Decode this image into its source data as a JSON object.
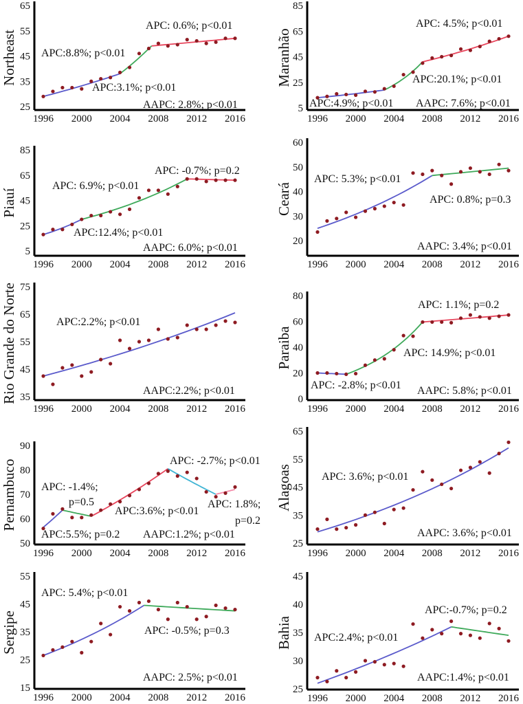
{
  "chart_data": [
    {
      "type": "line",
      "ylabel": "Northeast",
      "ylim": [
        25,
        65
      ],
      "yticks": [
        25,
        35,
        45,
        55,
        65
      ],
      "x": [
        1996,
        1997,
        1998,
        1999,
        2000,
        2001,
        2002,
        2003,
        2004,
        2005,
        2006,
        2007,
        2008,
        2009,
        2010,
        2011,
        2012,
        2013,
        2014,
        2015,
        2016
      ],
      "xticks": [
        1996,
        2000,
        2004,
        2008,
        2012,
        2016
      ],
      "points": [
        29,
        31,
        32.5,
        32.5,
        32,
        35,
        36,
        36.5,
        38.5,
        40.5,
        46,
        48,
        50,
        49,
        49.5,
        51.5,
        51,
        50,
        50.5,
        52,
        52
      ],
      "segments": [
        {
          "x0": 1996,
          "x1": 2004,
          "y0": 29,
          "y1": 38,
          "color": "#5a5acb"
        },
        {
          "x0": 2004,
          "x1": 2007.3,
          "y0": 38,
          "y1": 49,
          "color": "#3ea95a"
        },
        {
          "x0": 2007.3,
          "x1": 2016,
          "y0": 49,
          "y1": 52,
          "color": "#e8455c"
        }
      ],
      "annotations": [
        "APC: 0.6%; p<0.01",
        "APC:8.8%; p<0.01",
        "APC:3.1%; p<0.01",
        "AAPC: 2.8%; p<0.01"
      ]
    },
    {
      "type": "line",
      "ylabel": "Maranhão",
      "ylim": [
        5,
        85
      ],
      "yticks": [
        5,
        25,
        45,
        65,
        85
      ],
      "x": [
        1996,
        1997,
        1998,
        1999,
        2000,
        2001,
        2002,
        2003,
        2004,
        2005,
        2006,
        2007,
        2008,
        2009,
        2010,
        2011,
        2012,
        2013,
        2014,
        2015,
        2016
      ],
      "xticks": [
        1996,
        2000,
        2004,
        2008,
        2012,
        2016
      ],
      "points": [
        13,
        14,
        16,
        15.5,
        15,
        18,
        17.5,
        20,
        22,
        31,
        33,
        40,
        44,
        45,
        46,
        51,
        50,
        53,
        57,
        59,
        61
      ],
      "segments": [
        {
          "x0": 1996,
          "x1": 2003,
          "y0": 13,
          "y1": 19,
          "color": "#5a5acb"
        },
        {
          "x0": 2003,
          "x1": 2007,
          "y0": 19,
          "y1": 41,
          "color": "#3ea95a"
        },
        {
          "x0": 2007,
          "x1": 2016,
          "y0": 41,
          "y1": 61,
          "color": "#e8455c"
        }
      ],
      "annotations": [
        "APC: 4.5%; p<0.01",
        "APC:20.1%; p<0.01",
        "APC:4.9%; p<0.01",
        "AAPC: 7.6%; p<0.01"
      ]
    },
    {
      "type": "line",
      "ylabel": "Piauí",
      "ylim": [
        5,
        85
      ],
      "yticks": [
        5,
        25,
        45,
        65,
        85
      ],
      "x": [
        1996,
        1997,
        1998,
        1999,
        2000,
        2001,
        2002,
        2003,
        2004,
        2005,
        2006,
        2007,
        2008,
        2009,
        2010,
        2011,
        2012,
        2013,
        2014,
        2015,
        2016
      ],
      "xticks": [
        1996,
        2000,
        2004,
        2008,
        2012,
        2016
      ],
      "points": [
        18,
        22,
        22,
        26,
        30,
        33,
        33,
        36,
        34,
        38,
        47,
        53,
        53,
        50,
        56,
        62,
        62,
        60,
        61,
        61,
        61
      ],
      "segments": [
        {
          "x0": 1996,
          "x1": 2000,
          "y0": 18,
          "y1": 30,
          "color": "#5a5acb"
        },
        {
          "x0": 2000,
          "x1": 2011,
          "y0": 30,
          "y1": 62,
          "color": "#3ea95a"
        },
        {
          "x0": 2011,
          "x1": 2016,
          "y0": 62,
          "y1": 61,
          "color": "#e8455c"
        }
      ],
      "annotations": [
        "APC: -0.7%; p=0.2",
        "APC: 6.9%; p<0.01",
        "APC:12.4%; p<0.01",
        "AAPC: 6.0%; p<0.01"
      ]
    },
    {
      "type": "line",
      "ylabel": "Ceará",
      "ylim": [
        20,
        60
      ],
      "yticks": [
        20,
        30,
        40,
        50,
        60
      ],
      "x": [
        1996,
        1997,
        1998,
        1999,
        2000,
        2001,
        2002,
        2003,
        2004,
        2005,
        2006,
        2007,
        2008,
        2009,
        2010,
        2011,
        2012,
        2013,
        2014,
        2015,
        2016
      ],
      "xticks": [
        1996,
        2000,
        2004,
        2008,
        2012,
        2016
      ],
      "points": [
        23.5,
        28,
        29,
        31.5,
        29.5,
        32,
        33,
        34,
        35.5,
        34.5,
        47.5,
        47,
        48.5,
        46.5,
        43,
        48,
        49.5,
        48,
        47,
        51,
        48.5
      ],
      "segments": [
        {
          "x0": 1996,
          "x1": 2008,
          "y0": 25,
          "y1": 46.5,
          "color": "#5a5acb"
        },
        {
          "x0": 2008,
          "x1": 2016,
          "y0": 46.5,
          "y1": 49.5,
          "color": "#3ea95a"
        }
      ],
      "annotations": [
        "APC: 5.3%; p<0.01",
        "APC: 0.8%; p=0.3",
        "AAPC: 3.4%; p<0.01"
      ]
    },
    {
      "type": "line",
      "ylabel": "Rio Grande do Norte",
      "ylim": [
        35,
        75
      ],
      "yticks": [
        35,
        45,
        55,
        65,
        75
      ],
      "x": [
        1996,
        1997,
        1998,
        1999,
        2000,
        2001,
        2002,
        2003,
        2004,
        2005,
        2006,
        2007,
        2008,
        2009,
        2010,
        2011,
        2012,
        2013,
        2014,
        2015,
        2016
      ],
      "xticks": [
        1996,
        2000,
        2004,
        2008,
        2012,
        2016
      ],
      "points": [
        42.5,
        39.5,
        45.5,
        46.5,
        42.5,
        44,
        48.5,
        47,
        55.5,
        52.5,
        55,
        55.5,
        59.5,
        56,
        56.5,
        61,
        59.5,
        59.5,
        61,
        62.5,
        62
      ],
      "segments": [
        {
          "x0": 1996,
          "x1": 2016,
          "y0": 42.5,
          "y1": 65.5,
          "color": "#5a5acb"
        }
      ],
      "annotations": [
        "APC:2.2%; p<0.01",
        "AAPC:2.2%; p<0.01"
      ]
    },
    {
      "type": "line",
      "ylabel": "Paraiba",
      "ylim": [
        0,
        80
      ],
      "yticks": [
        0,
        20,
        40,
        60,
        80
      ],
      "x": [
        1996,
        1997,
        1998,
        1999,
        2000,
        2001,
        2002,
        2003,
        2004,
        2005,
        2006,
        2007,
        2008,
        2009,
        2010,
        2011,
        2012,
        2013,
        2014,
        2015,
        2016
      ],
      "xticks": [
        1996,
        2000,
        2004,
        2008,
        2012,
        2016
      ],
      "points": [
        20,
        20,
        19.5,
        19,
        19.5,
        26,
        30,
        31,
        38,
        49,
        48.5,
        59.5,
        59.5,
        59.5,
        59,
        62.5,
        65,
        63.5,
        62.5,
        64,
        65
      ],
      "segments": [
        {
          "x0": 1996,
          "x1": 1999,
          "y0": 20,
          "y1": 19,
          "color": "#5a5acb"
        },
        {
          "x0": 1999,
          "x1": 2007,
          "y0": 19,
          "y1": 59.5,
          "color": "#3ea95a"
        },
        {
          "x0": 2007,
          "x1": 2016,
          "y0": 59.5,
          "y1": 65,
          "color": "#e8455c"
        }
      ],
      "annotations": [
        "APC: 1.1%; p=0.2",
        "APC: 14.9%; p<0.01",
        "APC: -2.8%; p<0.01",
        "AAPC: 5.8%; p<0.01"
      ]
    },
    {
      "type": "line",
      "ylabel": "Pernambuco",
      "ylim": [
        50,
        90
      ],
      "yticks": [
        50,
        60,
        70,
        80,
        90
      ],
      "x": [
        1996,
        1997,
        1998,
        1999,
        2000,
        2001,
        2002,
        2003,
        2004,
        2005,
        2006,
        2007,
        2008,
        2009,
        2010,
        2011,
        2012,
        2013,
        2014,
        2015,
        2016
      ],
      "xticks": [
        1996,
        2000,
        2004,
        2008,
        2012,
        2016
      ],
      "points": [
        56,
        62,
        64,
        60.5,
        60.5,
        61.5,
        63.5,
        66,
        67,
        69.5,
        72,
        74.5,
        78.5,
        79.5,
        77.5,
        79,
        76.5,
        71,
        69,
        70.5,
        73
      ],
      "segments": [
        {
          "x0": 1996,
          "x1": 1998,
          "y0": 56.5,
          "y1": 63.5,
          "color": "#5a5acb"
        },
        {
          "x0": 1998,
          "x1": 2001,
          "y0": 63.5,
          "y1": 61,
          "color": "#3ea95a"
        },
        {
          "x0": 2001,
          "x1": 2009,
          "y0": 61,
          "y1": 80.5,
          "color": "#e8455c"
        },
        {
          "x0": 2009,
          "x1": 2014,
          "y0": 80.5,
          "y1": 70,
          "color": "#3fb4d4"
        },
        {
          "x0": 2014,
          "x1": 2016,
          "y0": 70,
          "y1": 72,
          "color": "#f48aa8"
        }
      ],
      "annotations": [
        "APC: -2.7%; p<0.01",
        "APC: -1.4%;",
        "p=0.5",
        "APC:3.6%; p<0.01",
        "APC: 1.8%;",
        "p=0.2",
        "APC:5.5%; p=0.2",
        "AAPC:1.2%; p<0.01"
      ]
    },
    {
      "type": "line",
      "ylabel": "Alagoas",
      "ylim": [
        25,
        65
      ],
      "yticks": [
        25,
        35,
        45,
        55,
        65
      ],
      "x": [
        1996,
        1997,
        1998,
        1999,
        2000,
        2001,
        2002,
        2003,
        2004,
        2005,
        2006,
        2007,
        2008,
        2009,
        2010,
        2011,
        2012,
        2013,
        2014,
        2015,
        2016
      ],
      "xticks": [
        1996,
        2000,
        2004,
        2008,
        2012,
        2016
      ],
      "points": [
        30,
        33.5,
        30,
        30.5,
        31.5,
        35,
        36,
        32,
        37,
        37.5,
        44,
        50.5,
        47.5,
        46,
        44.5,
        51,
        52,
        54,
        50,
        57,
        61
      ],
      "segments": [
        {
          "x0": 1996,
          "x1": 2016,
          "y0": 29,
          "y1": 59,
          "color": "#5a5acb"
        }
      ],
      "annotations": [
        "APC: 3.6%; p<0.01",
        "AAPC: 3.6%; p<0.01"
      ]
    },
    {
      "type": "line",
      "ylabel": "Sergipe",
      "ylim": [
        15,
        55
      ],
      "yticks": [
        15,
        25,
        35,
        45,
        55
      ],
      "x": [
        1996,
        1997,
        1998,
        1999,
        2000,
        2001,
        2002,
        2003,
        2004,
        2005,
        2006,
        2007,
        2008,
        2009,
        2010,
        2011,
        2012,
        2013,
        2014,
        2015,
        2016
      ],
      "xticks": [
        1996,
        2000,
        2004,
        2008,
        2012,
        2016
      ],
      "points": [
        26.5,
        28.5,
        29.5,
        31.5,
        27.5,
        31.5,
        38,
        34,
        44,
        42.5,
        45.5,
        46,
        43,
        39.5,
        45.5,
        44,
        39.5,
        40.5,
        44.5,
        43.5,
        43
      ],
      "segments": [
        {
          "x0": 1996,
          "x1": 2006.5,
          "y0": 26.5,
          "y1": 44.5,
          "color": "#5a5acb"
        },
        {
          "x0": 2006.5,
          "x1": 2016,
          "y0": 44.5,
          "y1": 42.5,
          "color": "#3ea95a"
        }
      ],
      "annotations": [
        "APC: 5.4%; p<0.01",
        "APC: -0.5%; p=0.3",
        "AAPC: 2.5%; p<0.01"
      ]
    },
    {
      "type": "line",
      "ylabel": "Bahia",
      "ylim": [
        25,
        45
      ],
      "yticks": [
        25,
        30,
        35,
        40,
        45
      ],
      "x": [
        1996,
        1997,
        1998,
        1999,
        2000,
        2001,
        2002,
        2003,
        2004,
        2005,
        2006,
        2007,
        2008,
        2009,
        2010,
        2011,
        2012,
        2013,
        2014,
        2015,
        2016
      ],
      "xticks": [
        1996,
        2000,
        2004,
        2008,
        2012,
        2016
      ],
      "points": [
        27,
        26.3,
        28.2,
        27,
        28,
        30,
        29.8,
        29.3,
        29.5,
        29,
        36.5,
        34,
        35.5,
        34.8,
        37,
        34.8,
        34.5,
        34,
        36.6,
        35.7,
        33.5
      ],
      "segments": [
        {
          "x0": 1996,
          "x1": 2010,
          "y0": 26,
          "y1": 36,
          "color": "#5a5acb"
        },
        {
          "x0": 2010,
          "x1": 2016,
          "y0": 36,
          "y1": 34.5,
          "color": "#3ea95a"
        }
      ],
      "annotations": [
        "APC:-0.7%; p=0.2",
        "APC:2.4%; p<0.01",
        "AAPC:1.4%; p<0.01"
      ]
    }
  ],
  "colors": {
    "points": "#8e1b22",
    "axis": "#000000"
  }
}
